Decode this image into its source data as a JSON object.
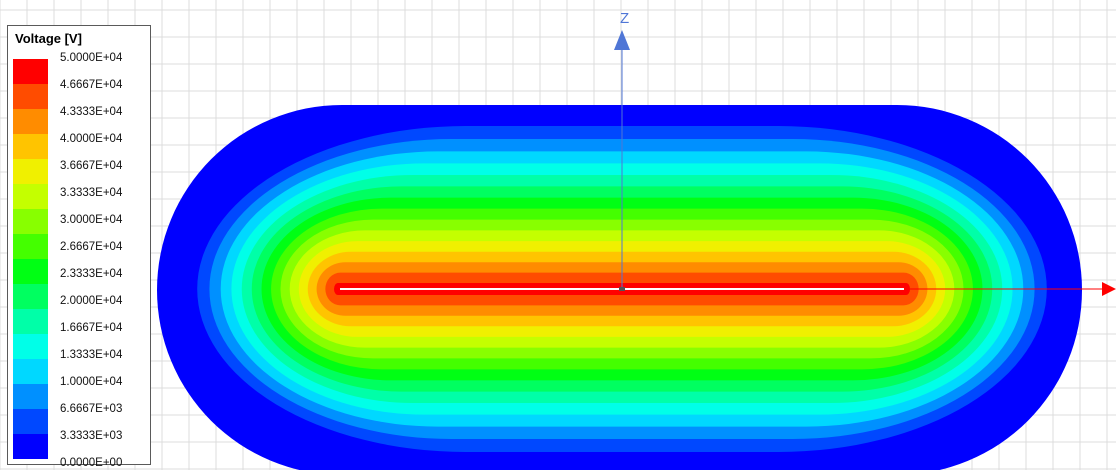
{
  "legend": {
    "title": "Voltage [V]",
    "levels": [
      {
        "label": "5.0000E+04",
        "color": "#ff0000"
      },
      {
        "label": "4.6667E+04",
        "color": "#ff4c00"
      },
      {
        "label": "4.3333E+04",
        "color": "#ff8c00"
      },
      {
        "label": "4.0000E+04",
        "color": "#ffc400"
      },
      {
        "label": "3.6667E+04",
        "color": "#f0f000"
      },
      {
        "label": "3.3333E+04",
        "color": "#c4ff00"
      },
      {
        "label": "3.0000E+04",
        "color": "#88ff00"
      },
      {
        "label": "2.6667E+04",
        "color": "#44ff00"
      },
      {
        "label": "2.3333E+04",
        "color": "#00ff14"
      },
      {
        "label": "2.0000E+04",
        "color": "#00ff60"
      },
      {
        "label": "1.6667E+04",
        "color": "#00ffa8"
      },
      {
        "label": "1.3333E+04",
        "color": "#00ffe8"
      },
      {
        "label": "1.0000E+04",
        "color": "#00d8ff"
      },
      {
        "label": "6.6667E+03",
        "color": "#0090ff"
      },
      {
        "label": "3.3333E+03",
        "color": "#0048ff"
      },
      {
        "label": "0.0000E+00",
        "color": "#0000ff"
      }
    ]
  },
  "axes": {
    "z_label": "Z",
    "z_color": "#4f76d6",
    "x_color": "#ff0000"
  },
  "colors": {
    "grid": "#dcdcdc",
    "background": "#ffffff",
    "conductor": "#ffffff"
  }
}
